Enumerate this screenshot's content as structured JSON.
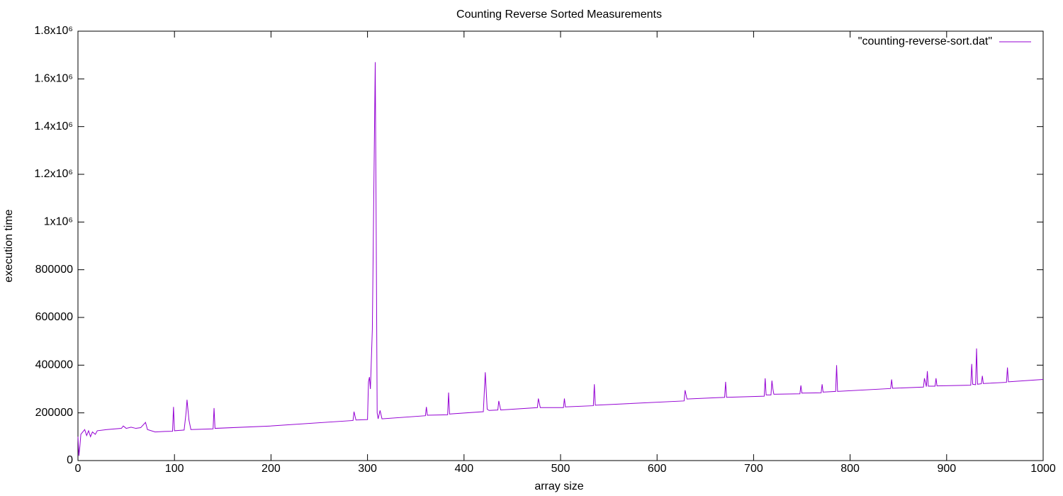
{
  "chart_data": {
    "type": "line",
    "title": "Counting Reverse Sorted Measurements",
    "x_label": "array size",
    "y_label": "execution time",
    "legend_position": "top-right",
    "grid": false,
    "xlim": [
      0,
      1000
    ],
    "xticks": [
      0,
      100,
      200,
      300,
      400,
      500,
      600,
      700,
      800,
      900,
      1000
    ],
    "ylim": [
      0,
      1800000
    ],
    "yticks": [
      0,
      200000,
      400000,
      600000,
      800000,
      {
        "value": 1000000,
        "label": "1x10⁶"
      },
      {
        "value": 1200000,
        "label": "1.2x10⁶"
      },
      {
        "value": 1400000,
        "label": "1.4x10⁶"
      },
      {
        "value": 1600000,
        "label": "1.6x10⁶"
      },
      {
        "value": 1800000,
        "label": "1.8x10⁶"
      }
    ],
    "x": [
      0,
      1,
      2,
      3,
      5,
      7,
      9,
      11,
      13,
      15,
      18,
      20,
      30,
      45,
      47,
      50,
      55,
      60,
      65,
      70,
      72,
      80,
      90,
      98,
      99,
      100,
      110,
      112,
      113,
      115,
      117,
      140,
      141,
      142,
      200,
      285,
      286,
      288,
      300,
      301,
      302,
      303,
      305,
      307,
      308,
      309,
      310,
      311,
      313,
      315,
      360,
      361,
      362,
      383,
      384,
      385,
      420,
      422,
      424,
      426,
      435,
      436,
      438,
      476,
      477,
      479,
      503,
      504,
      505,
      534,
      535,
      536,
      628,
      629,
      631,
      670,
      671,
      672,
      711,
      712,
      713,
      718,
      719,
      720,
      721,
      748,
      749,
      750,
      770,
      771,
      772,
      785,
      786,
      787,
      842,
      843,
      844,
      876,
      877,
      879,
      880,
      881,
      888,
      889,
      890,
      925,
      926,
      927,
      930,
      931,
      932,
      936,
      937,
      938,
      962,
      963,
      964,
      1000
    ],
    "series": [
      {
        "name": "\"counting-reverse-sort.dat\"",
        "color": "#9400d3",
        "values": [
          100000,
          20000,
          60000,
          110000,
          120000,
          130000,
          105000,
          125000,
          100000,
          120000,
          110000,
          125000,
          130000,
          135000,
          145000,
          135000,
          140000,
          135000,
          138000,
          160000,
          130000,
          120000,
          122000,
          123000,
          225000,
          125000,
          128000,
          200000,
          255000,
          170000,
          130000,
          133000,
          220000,
          135000,
          145000,
          168000,
          205000,
          170000,
          172000,
          330000,
          350000,
          300000,
          550000,
          1300000,
          1670000,
          960000,
          200000,
          175000,
          210000,
          175000,
          188000,
          225000,
          190000,
          192000,
          285000,
          195000,
          205000,
          370000,
          215000,
          210000,
          212000,
          250000,
          212000,
          222000,
          260000,
          222000,
          222000,
          260000,
          225000,
          230000,
          320000,
          232000,
          250000,
          295000,
          258000,
          265000,
          330000,
          265000,
          270000,
          345000,
          275000,
          275000,
          335000,
          300000,
          278000,
          280000,
          315000,
          283000,
          284000,
          320000,
          287000,
          290000,
          400000,
          290000,
          302000,
          340000,
          303000,
          308000,
          345000,
          310000,
          375000,
          312000,
          312000,
          345000,
          313000,
          316000,
          405000,
          320000,
          318000,
          470000,
          320000,
          322000,
          355000,
          323000,
          328000,
          390000,
          330000,
          340000
        ]
      }
    ]
  }
}
